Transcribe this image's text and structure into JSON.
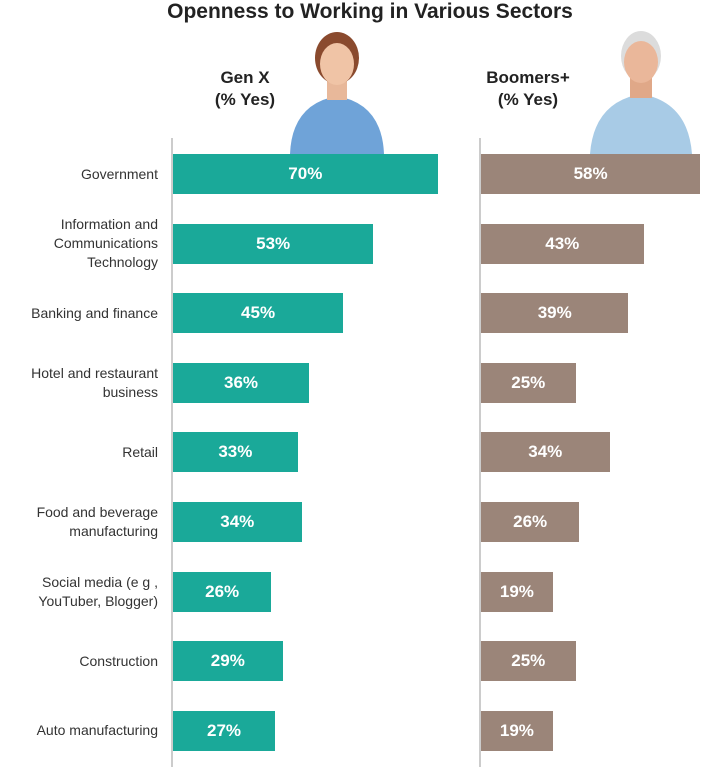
{
  "chart_data": {
    "type": "bar",
    "title": "Openness to Working in Various Sectors",
    "categories": [
      "Government",
      "Information and Communications Technology",
      "Banking and finance",
      "Hotel and restaurant business",
      "Retail",
      "Food and beverage manufacturing",
      "Social media (e g , YouTuber, Blogger)",
      "Construction",
      "Auto manufacturing"
    ],
    "series": [
      {
        "name": "Gen X (% Yes)",
        "color": "#1aa999",
        "values": [
          70,
          53,
          45,
          36,
          33,
          34,
          26,
          29,
          27
        ],
        "value_labels": [
          "70%",
          "53%",
          "45%",
          "36%",
          "33%",
          "34%",
          "26%",
          "29%",
          "27%"
        ]
      },
      {
        "name": "Boomers+ (% Yes)",
        "color": "#9b8579",
        "values": [
          58,
          43,
          39,
          25,
          34,
          26,
          19,
          25,
          19
        ],
        "value_labels": [
          "58%",
          "43%",
          "39%",
          "25%",
          "34%",
          "26%",
          "19%",
          "25%",
          "19%"
        ]
      }
    ]
  }
}
